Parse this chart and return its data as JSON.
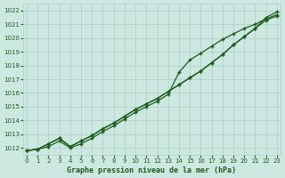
{
  "title": "",
  "xlabel": "Graphe pression niveau de la mer (hPa)",
  "ylabel": "",
  "bg_color": "#cce8e0",
  "grid_color": "#aacfc8",
  "line_color": "#1e5c1e",
  "marker": "+",
  "ylim": [
    1011.5,
    1022.5
  ],
  "xlim": [
    -0.3,
    23.3
  ],
  "yticks": [
    1012,
    1013,
    1014,
    1015,
    1016,
    1017,
    1018,
    1019,
    1020,
    1021,
    1022
  ],
  "xticks": [
    0,
    1,
    2,
    3,
    4,
    5,
    6,
    7,
    8,
    9,
    10,
    11,
    12,
    13,
    14,
    15,
    16,
    17,
    18,
    19,
    20,
    21,
    22,
    23
  ],
  "series1": [
    1011.8,
    1011.9,
    1012.3,
    1012.7,
    1012.1,
    1012.5,
    1012.9,
    1013.4,
    1013.8,
    1014.3,
    1014.8,
    1015.2,
    1015.6,
    1016.1,
    1016.6,
    1017.1,
    1017.6,
    1018.2,
    1018.8,
    1019.5,
    1020.1,
    1020.7,
    1021.3,
    1021.6
  ],
  "series2": [
    1011.8,
    1011.9,
    1012.3,
    1012.7,
    1012.1,
    1012.5,
    1012.9,
    1013.4,
    1013.8,
    1014.3,
    1014.8,
    1015.2,
    1015.6,
    1016.1,
    1016.6,
    1017.1,
    1017.6,
    1018.2,
    1018.8,
    1019.5,
    1020.1,
    1020.7,
    1021.5,
    1021.9
  ],
  "series3": [
    1011.8,
    1011.9,
    1012.1,
    1012.5,
    1012.0,
    1012.3,
    1012.7,
    1013.2,
    1013.6,
    1014.1,
    1014.6,
    1015.0,
    1015.4,
    1015.9,
    1017.5,
    1018.4,
    1018.9,
    1019.4,
    1019.9,
    1020.3,
    1020.7,
    1021.0,
    1021.4,
    1021.7
  ]
}
